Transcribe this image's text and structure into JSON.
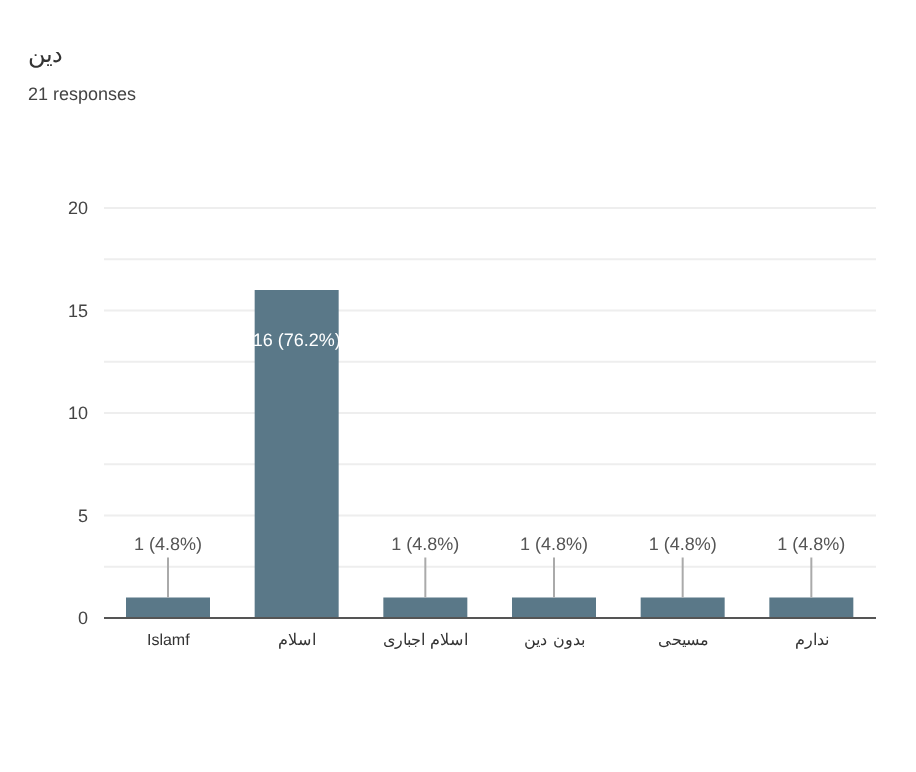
{
  "chart_data": {
    "type": "bar",
    "title": "دین",
    "subtitle": "21 responses",
    "categories": [
      "Islamf",
      "اسلام",
      "اسلام اجباری",
      "بدون دین",
      "مسیحی",
      "ندارم"
    ],
    "values": [
      1,
      16,
      1,
      1,
      1,
      1
    ],
    "value_labels": [
      "1 (4.8%)",
      "16 (76.2%)",
      "1 (4.8%)",
      "1 (4.8%)",
      "1 (4.8%)",
      "1 (4.8%)"
    ],
    "color": "#5a7888",
    "ylim": [
      0,
      20
    ],
    "yticks": [
      0,
      {
        "value": 2.5,
        "label": null
      },
      5,
      {
        "value": 7.5,
        "label": null
      },
      10,
      {
        "value": 12.5,
        "label": null
      },
      15,
      {
        "value": 17.5,
        "label": null
      },
      20
    ],
    "grid": "y"
  }
}
